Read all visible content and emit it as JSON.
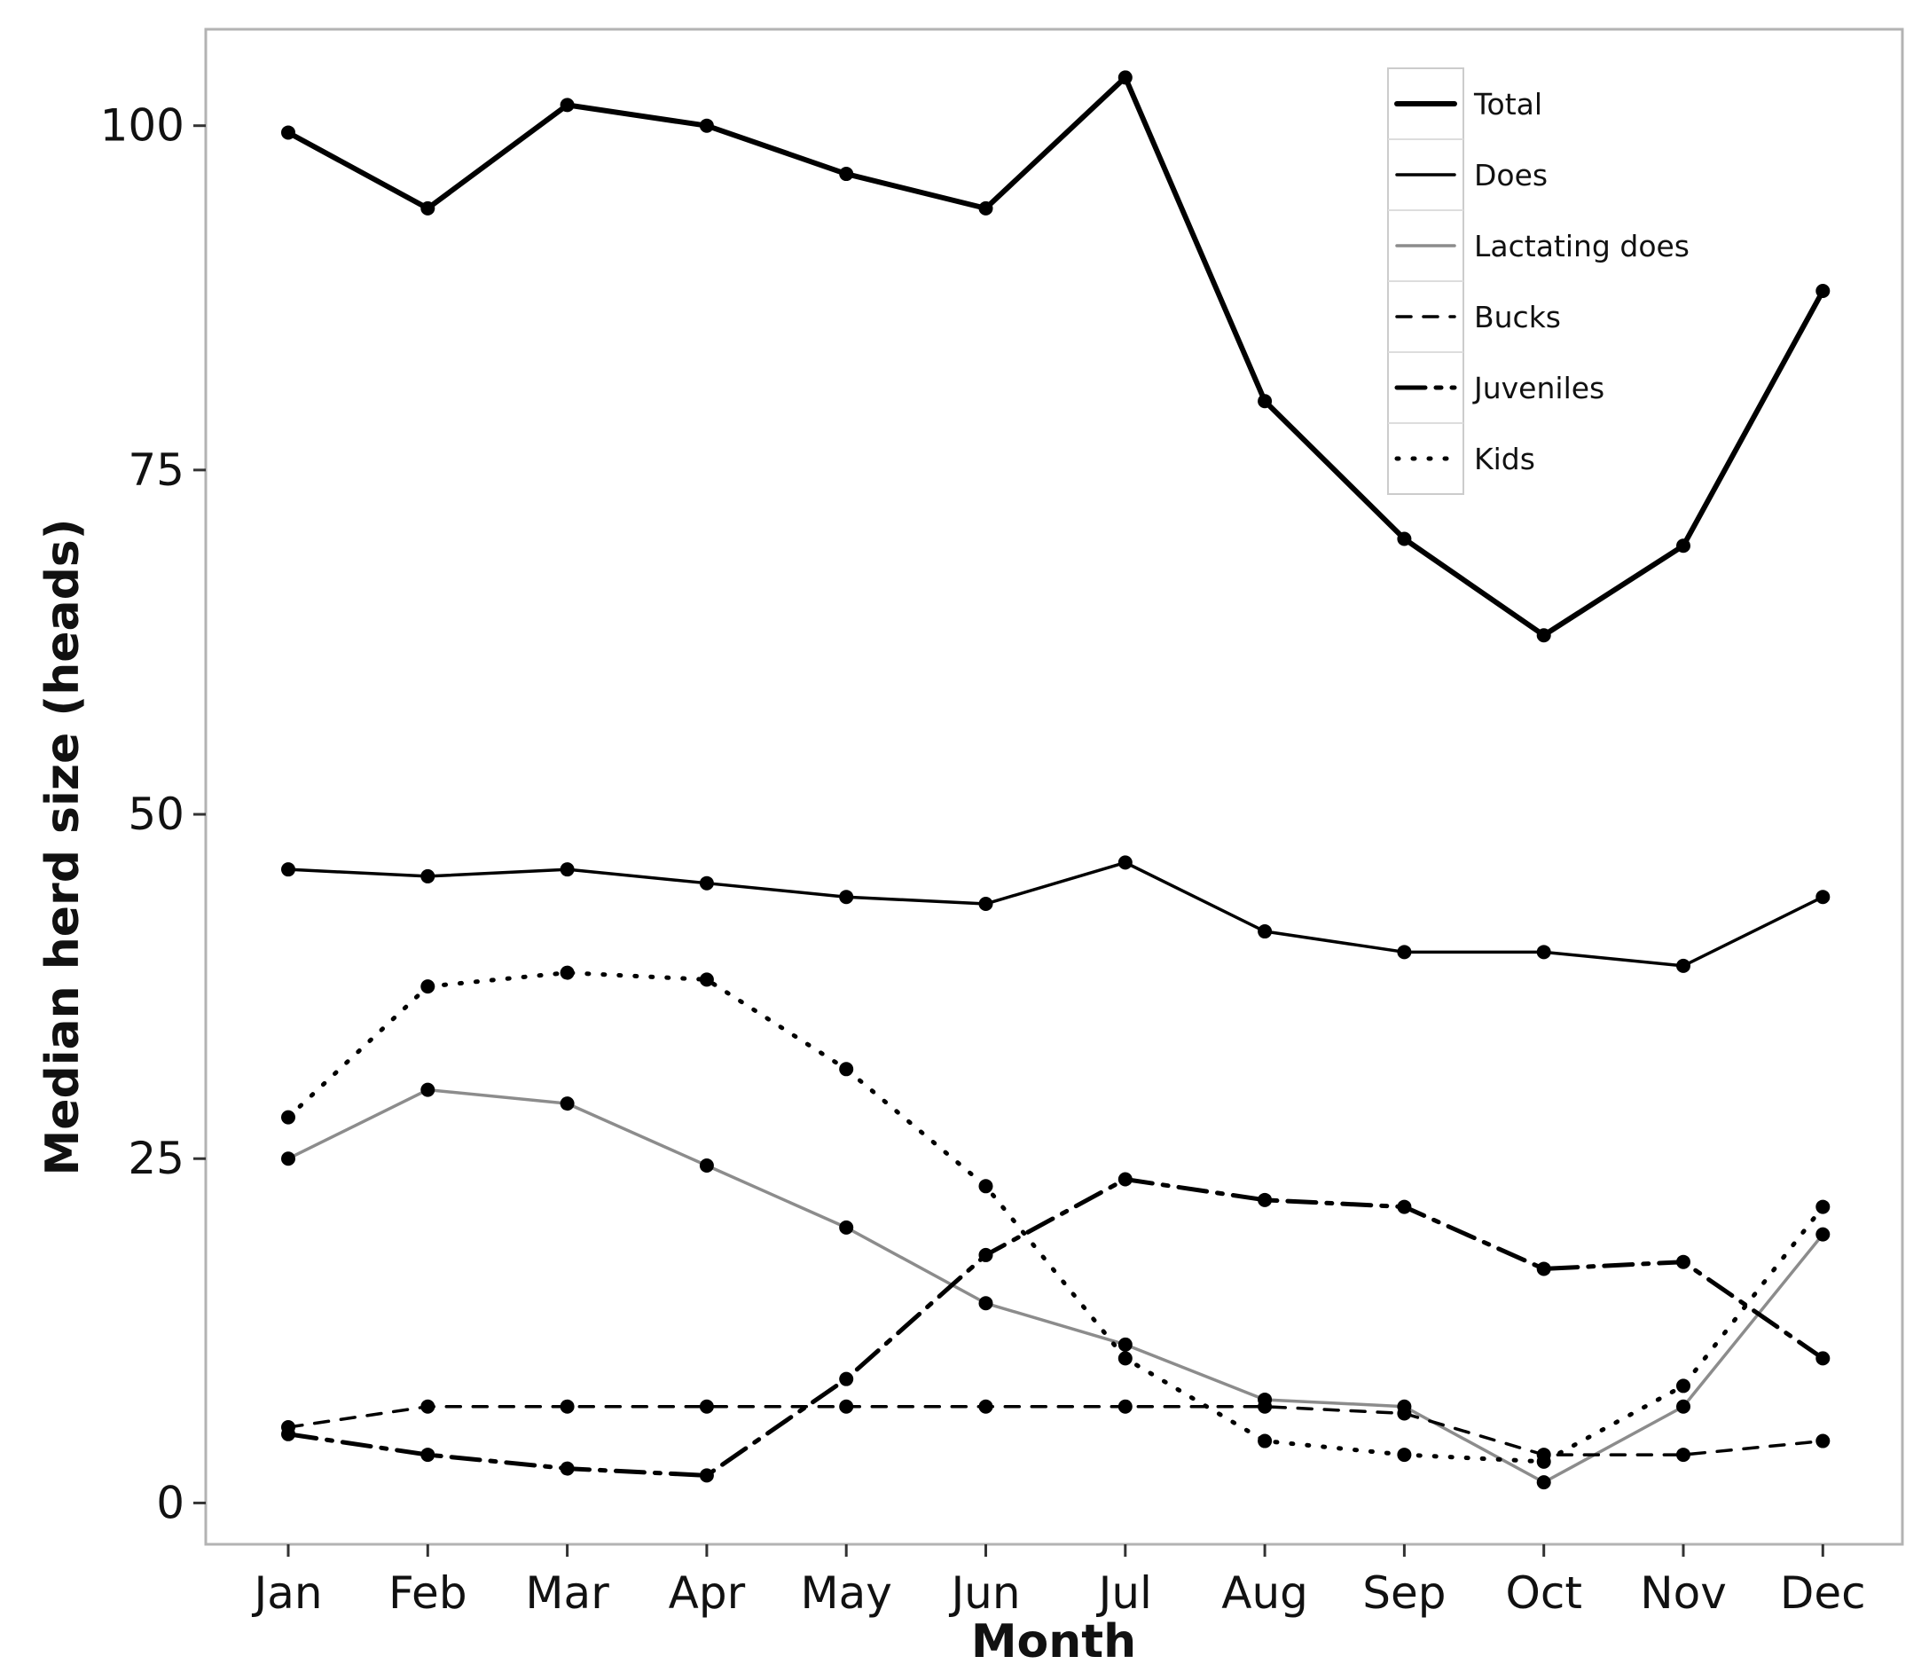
{
  "chart_data": {
    "type": "line",
    "xlabel": "Month",
    "ylabel": "Median herd size (heads)",
    "categories": [
      "Jan",
      "Feb",
      "Mar",
      "Apr",
      "May",
      "Jun",
      "Jul",
      "Aug",
      "Sep",
      "Oct",
      "Nov",
      "Dec"
    ],
    "y_ticks": [
      "0",
      "25",
      "50",
      "75",
      "100"
    ],
    "ylim": [
      -3,
      107
    ],
    "grid": false,
    "legend_position": "top-right",
    "series": [
      {
        "name": "Total",
        "style": "thick-solid",
        "color": "#000000",
        "values": [
          99.5,
          94,
          101.5,
          100,
          96.5,
          94,
          103.5,
          80,
          70,
          63,
          69.5,
          88
        ]
      },
      {
        "name": "Does",
        "style": "solid",
        "color": "#000000",
        "values": [
          46,
          45.5,
          46,
          45,
          44,
          43.5,
          46.5,
          41.5,
          40,
          40,
          39,
          44
        ]
      },
      {
        "name": "Lactating does",
        "style": "solid-grey",
        "color": "#8c8c8c",
        "values": [
          25,
          30,
          29,
          24.5,
          20,
          14.5,
          11.5,
          7.5,
          7,
          1.5,
          7,
          19.5
        ]
      },
      {
        "name": "Bucks",
        "style": "dashed",
        "color": "#000000",
        "values": [
          5.5,
          7,
          7,
          7,
          7,
          7,
          7,
          7,
          6.5,
          3.5,
          3.5,
          4.5
        ]
      },
      {
        "name": "Juveniles",
        "style": "dash-dot",
        "color": "#000000",
        "values": [
          5,
          3.5,
          2.5,
          2,
          9,
          18,
          23.5,
          22,
          21.5,
          17,
          17.5,
          10.5
        ]
      },
      {
        "name": "Kids",
        "style": "dotted",
        "color": "#000000",
        "values": [
          28,
          37.5,
          38.5,
          38,
          31.5,
          23,
          10.5,
          4.5,
          3.5,
          3,
          8.5,
          21.5
        ]
      }
    ]
  }
}
